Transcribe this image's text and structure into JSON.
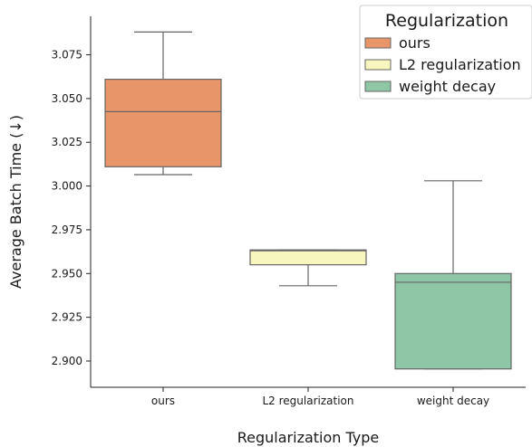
{
  "chart_data": {
    "type": "box",
    "xlabel": "Regularization Type",
    "ylabel": "Average Batch Time (↓)",
    "ylim": [
      2.885,
      3.097
    ],
    "yticks": [
      "2.900",
      "2.925",
      "2.950",
      "2.975",
      "3.000",
      "3.025",
      "3.050",
      "3.075"
    ],
    "categories": [
      "ours",
      "L2 regularization",
      "weight decay"
    ],
    "boxes": [
      {
        "category": "ours",
        "whisker_low": 3.0065,
        "q1": 3.011,
        "median": 3.0425,
        "q3": 3.061,
        "whisker_high": 3.088,
        "color": "#E9956A"
      },
      {
        "category": "L2 regularization",
        "whisker_low": 2.943,
        "q1": 2.955,
        "median": 2.963,
        "q3": 2.9635,
        "whisker_high": 2.9635,
        "color": "#F7F6BF"
      },
      {
        "category": "weight decay",
        "whisker_low": 2.8955,
        "q1": 2.8955,
        "median": 2.945,
        "q3": 2.95,
        "whisker_high": 3.003,
        "color": "#8FC6A6"
      }
    ],
    "legend": {
      "title": "Regularization",
      "placement": "top-right",
      "entries": [
        {
          "label": "ours",
          "color": "#E9956A"
        },
        {
          "label": "L2 regularization",
          "color": "#F7F6BF"
        },
        {
          "label": "weight decay",
          "color": "#8FC6A6"
        }
      ]
    },
    "grid": false
  }
}
